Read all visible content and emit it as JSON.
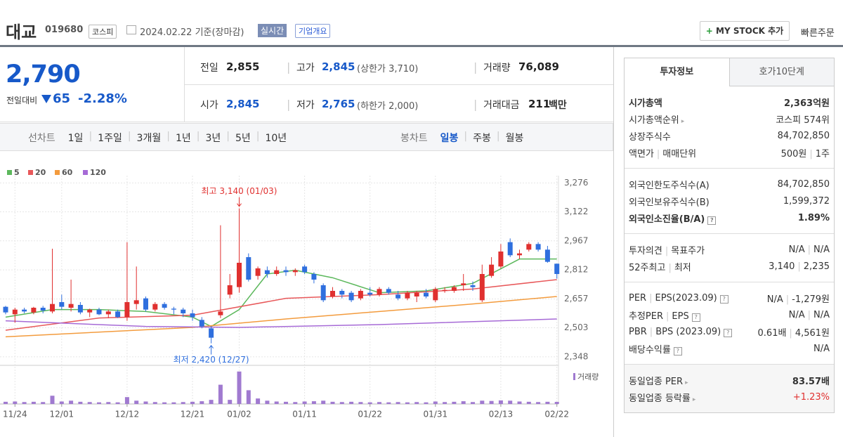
{
  "header": {
    "name": "대교",
    "code": "019680",
    "market": "코스피",
    "date": "2024.02.22 기준(장마감)",
    "realtime": "실시간",
    "company": "기업개요",
    "mystock": "MY STOCK 추가",
    "order": "빠른주문"
  },
  "quote": {
    "price": "2,790",
    "change_label": "전일대비",
    "change": "65",
    "rate": "-2.28%",
    "stats": [
      {
        "label": "전일",
        "value": "2,855"
      },
      {
        "label": "고가",
        "value": "2,845",
        "note": "(상한가 3,710)"
      },
      {
        "label": "거래량",
        "value": "76,089"
      },
      {
        "label": "시가",
        "value": "2,845"
      },
      {
        "label": "저가",
        "value": "2,765",
        "note": "(하한가 2,000)"
      },
      {
        "label": "거래대금",
        "value": "211",
        "unit": "백만"
      }
    ]
  },
  "periods": {
    "line_label": "선차트",
    "line": [
      "1일",
      "1주일",
      "3개월",
      "1년",
      "3년",
      "5년",
      "10년"
    ],
    "candle_label": "봉차트",
    "candle": [
      "일봉",
      "주봉",
      "월봉"
    ]
  },
  "chart_data": {
    "type": "candlestick",
    "up_color": "#e0302f",
    "down_color": "#2f6fde",
    "grid": true,
    "categories": [
      null,
      "11/24",
      null,
      null,
      null,
      null,
      "12/01",
      null,
      null,
      null,
      null,
      null,
      null,
      "12/12",
      null,
      null,
      null,
      null,
      null,
      null,
      "12/21",
      null,
      null,
      null,
      null,
      "01/02",
      null,
      null,
      null,
      null,
      null,
      null,
      "01/11",
      null,
      null,
      null,
      null,
      null,
      null,
      "01/22",
      null,
      null,
      null,
      null,
      null,
      null,
      "01/31",
      null,
      null,
      null,
      null,
      null,
      null,
      "02/13",
      null,
      null,
      null,
      null,
      null,
      "02/22"
    ],
    "open": [
      2615,
      2575,
      2600,
      2585,
      2610,
      2590,
      2640,
      2610,
      2625,
      2585,
      2600,
      2575,
      2590,
      2560,
      2630,
      2660,
      2600,
      2630,
      2605,
      2600,
      2580,
      2545,
      2500,
      2570,
      2680,
      2720,
      2880,
      2780,
      2810,
      2790,
      2810,
      2800,
      2830,
      2790,
      2730,
      2670,
      2700,
      2690,
      2660,
      2690,
      2680,
      2710,
      2680,
      2660,
      2670,
      2690,
      2650,
      2700,
      2700,
      2730,
      2730,
      2650,
      2780,
      2830,
      2960,
      2890,
      2920,
      2950,
      2920,
      2845
    ],
    "high": [
      2620,
      2610,
      2610,
      2615,
      2620,
      2925,
      2680,
      2760,
      2640,
      2605,
      2610,
      2600,
      2600,
      2960,
      2830,
      2670,
      2640,
      2640,
      2615,
      2610,
      2600,
      2560,
      2510,
      3050,
      2790,
      3140,
      2900,
      2830,
      2830,
      2830,
      2830,
      2820,
      2840,
      2800,
      2740,
      2720,
      2710,
      2700,
      2710,
      2720,
      2720,
      2720,
      2700,
      2700,
      2700,
      2710,
      2720,
      2720,
      2730,
      2790,
      2750,
      2840,
      2880,
      2950,
      2980,
      2920,
      2960,
      2960,
      2940,
      2845
    ],
    "low": [
      2575,
      2530,
      2580,
      2575,
      2580,
      2580,
      2600,
      2590,
      2575,
      2560,
      2570,
      2555,
      2555,
      2540,
      2600,
      2590,
      2590,
      2600,
      2575,
      2560,
      2540,
      2500,
      2420,
      2555,
      2660,
      2690,
      2750,
      2760,
      2770,
      2780,
      2780,
      2780,
      2790,
      2740,
      2640,
      2660,
      2660,
      2640,
      2650,
      2670,
      2670,
      2680,
      2650,
      2650,
      2640,
      2660,
      2640,
      2690,
      2690,
      2700,
      2700,
      2640,
      2770,
      2820,
      2880,
      2870,
      2910,
      2910,
      2850,
      2765
    ],
    "close": [
      2585,
      2600,
      2590,
      2610,
      2595,
      2630,
      2615,
      2630,
      2585,
      2600,
      2575,
      2590,
      2560,
      2640,
      2650,
      2600,
      2630,
      2610,
      2600,
      2580,
      2560,
      2510,
      2450,
      2590,
      2730,
      2850,
      2760,
      2820,
      2790,
      2810,
      2800,
      2810,
      2800,
      2760,
      2650,
      2700,
      2680,
      2650,
      2700,
      2680,
      2710,
      2690,
      2660,
      2690,
      2690,
      2670,
      2710,
      2705,
      2720,
      2740,
      2720,
      2790,
      2840,
      2910,
      2890,
      2900,
      2950,
      2920,
      2855,
      2790
    ],
    "ylim": [
      2310,
      3300
    ],
    "yticks": [
      {
        "value": 3276,
        "label": "3,276"
      },
      {
        "value": 3122,
        "label": "3,122"
      },
      {
        "value": 2967,
        "label": "2,967"
      },
      {
        "value": 2812,
        "label": "2,812"
      },
      {
        "value": 2657,
        "label": "2,657"
      },
      {
        "value": 2503,
        "label": "2,503"
      },
      {
        "value": 2348,
        "label": "2,348"
      }
    ],
    "series": [
      {
        "name": "5",
        "color": "#5cb85c",
        "x": [
          0,
          5,
          10,
          15,
          20,
          22,
          25,
          28,
          31,
          35,
          40,
          45,
          50,
          55,
          59
        ],
        "values": [
          2560,
          2600,
          2600,
          2590,
          2560,
          2510,
          2600,
          2790,
          2810,
          2770,
          2690,
          2700,
          2740,
          2870,
          2870
        ]
      },
      {
        "name": "20",
        "color": "#e8585a",
        "x": [
          0,
          10,
          20,
          30,
          40,
          50,
          59
        ],
        "values": [
          2490,
          2555,
          2570,
          2660,
          2680,
          2710,
          2760
        ]
      },
      {
        "name": "60",
        "color": "#f39b3d",
        "x": [
          0,
          20,
          30,
          40,
          50,
          59
        ],
        "values": [
          2455,
          2505,
          2550,
          2590,
          2630,
          2670
        ]
      },
      {
        "name": "120",
        "color": "#a66ad6",
        "x": [
          0,
          15,
          25,
          40,
          59
        ],
        "values": [
          2540,
          2510,
          2505,
          2520,
          2550
        ]
      }
    ],
    "volume": {
      "name": "거래량",
      "color": "#a07ad0",
      "vlim": [
        0,
        1200000
      ],
      "values": [
        80000,
        90000,
        70000,
        80000,
        70000,
        300000,
        90000,
        120000,
        80000,
        70000,
        60000,
        70000,
        60000,
        250000,
        120000,
        90000,
        70000,
        60000,
        60000,
        70000,
        80000,
        100000,
        150000,
        700000,
        150000,
        1180000,
        500000,
        200000,
        120000,
        90000,
        80000,
        70000,
        90000,
        100000,
        120000,
        80000,
        70000,
        80000,
        70000,
        60000,
        70000,
        60000,
        70000,
        60000,
        70000,
        60000,
        90000,
        70000,
        80000,
        100000,
        70000,
        120000,
        110000,
        130000,
        120000,
        90000,
        80000,
        70000,
        80000,
        76089
      ]
    },
    "annotations": {
      "high": "최고 3,140 (01/03)",
      "low": "최저 2,420 (12/27)"
    }
  },
  "info": {
    "tabs": [
      "투자정보",
      "호가10단계"
    ],
    "sections": [
      {
        "rows": [
          {
            "label": [
              "시가총액"
            ],
            "value": [
              "2,363억원"
            ],
            "bold": true
          },
          {
            "label": [
              "시가총액순위"
            ],
            "value": [
              "코스피 574위"
            ],
            "arrow": true
          },
          {
            "label": [
              "상장주식수"
            ],
            "value": [
              "84,702,850"
            ]
          },
          {
            "label": [
              "액면가",
              "매매단위"
            ],
            "value": [
              "500원",
              "1주"
            ]
          }
        ]
      },
      {
        "rows": [
          {
            "label": [
              "외국인한도주식수(A)"
            ],
            "value": [
              "84,702,850"
            ]
          },
          {
            "label": [
              "외국인보유주식수(B)"
            ],
            "value": [
              "1,599,372"
            ]
          },
          {
            "label": [
              "외국인소진율(B/A)"
            ],
            "value": [
              "1.89%"
            ],
            "bold": true,
            "help": true
          }
        ]
      },
      {
        "rows": [
          {
            "label": [
              "투자의견",
              "목표주가"
            ],
            "value": [
              "N/A",
              "N/A"
            ]
          },
          {
            "label": [
              "52주최고",
              "최저"
            ],
            "value": [
              "3,140",
              "2,235"
            ]
          }
        ]
      },
      {
        "rows": [
          {
            "label": [
              "PER",
              "EPS(2023.09)"
            ],
            "value": [
              "N/A",
              "-1,279원"
            ],
            "help": true
          },
          {
            "label": [
              "추정PER",
              "EPS"
            ],
            "value": [
              "N/A",
              "N/A"
            ],
            "help": true
          },
          {
            "label": [
              "PBR",
              "BPS (2023.09)"
            ],
            "value": [
              "0.61배",
              "4,561원"
            ],
            "help": true
          },
          {
            "label": [
              "배당수익률"
            ],
            "value": [
              "N/A"
            ],
            "help": true
          }
        ]
      },
      {
        "shaded": true,
        "rows": [
          {
            "label": [
              "동일업종 PER"
            ],
            "value": [
              "83.57배"
            ],
            "arrow": true,
            "bold_value": true
          },
          {
            "label": [
              "동일업종 등락률"
            ],
            "value": [
              "+1.23%"
            ],
            "arrow": true,
            "color": "#e0302f"
          }
        ]
      }
    ]
  }
}
